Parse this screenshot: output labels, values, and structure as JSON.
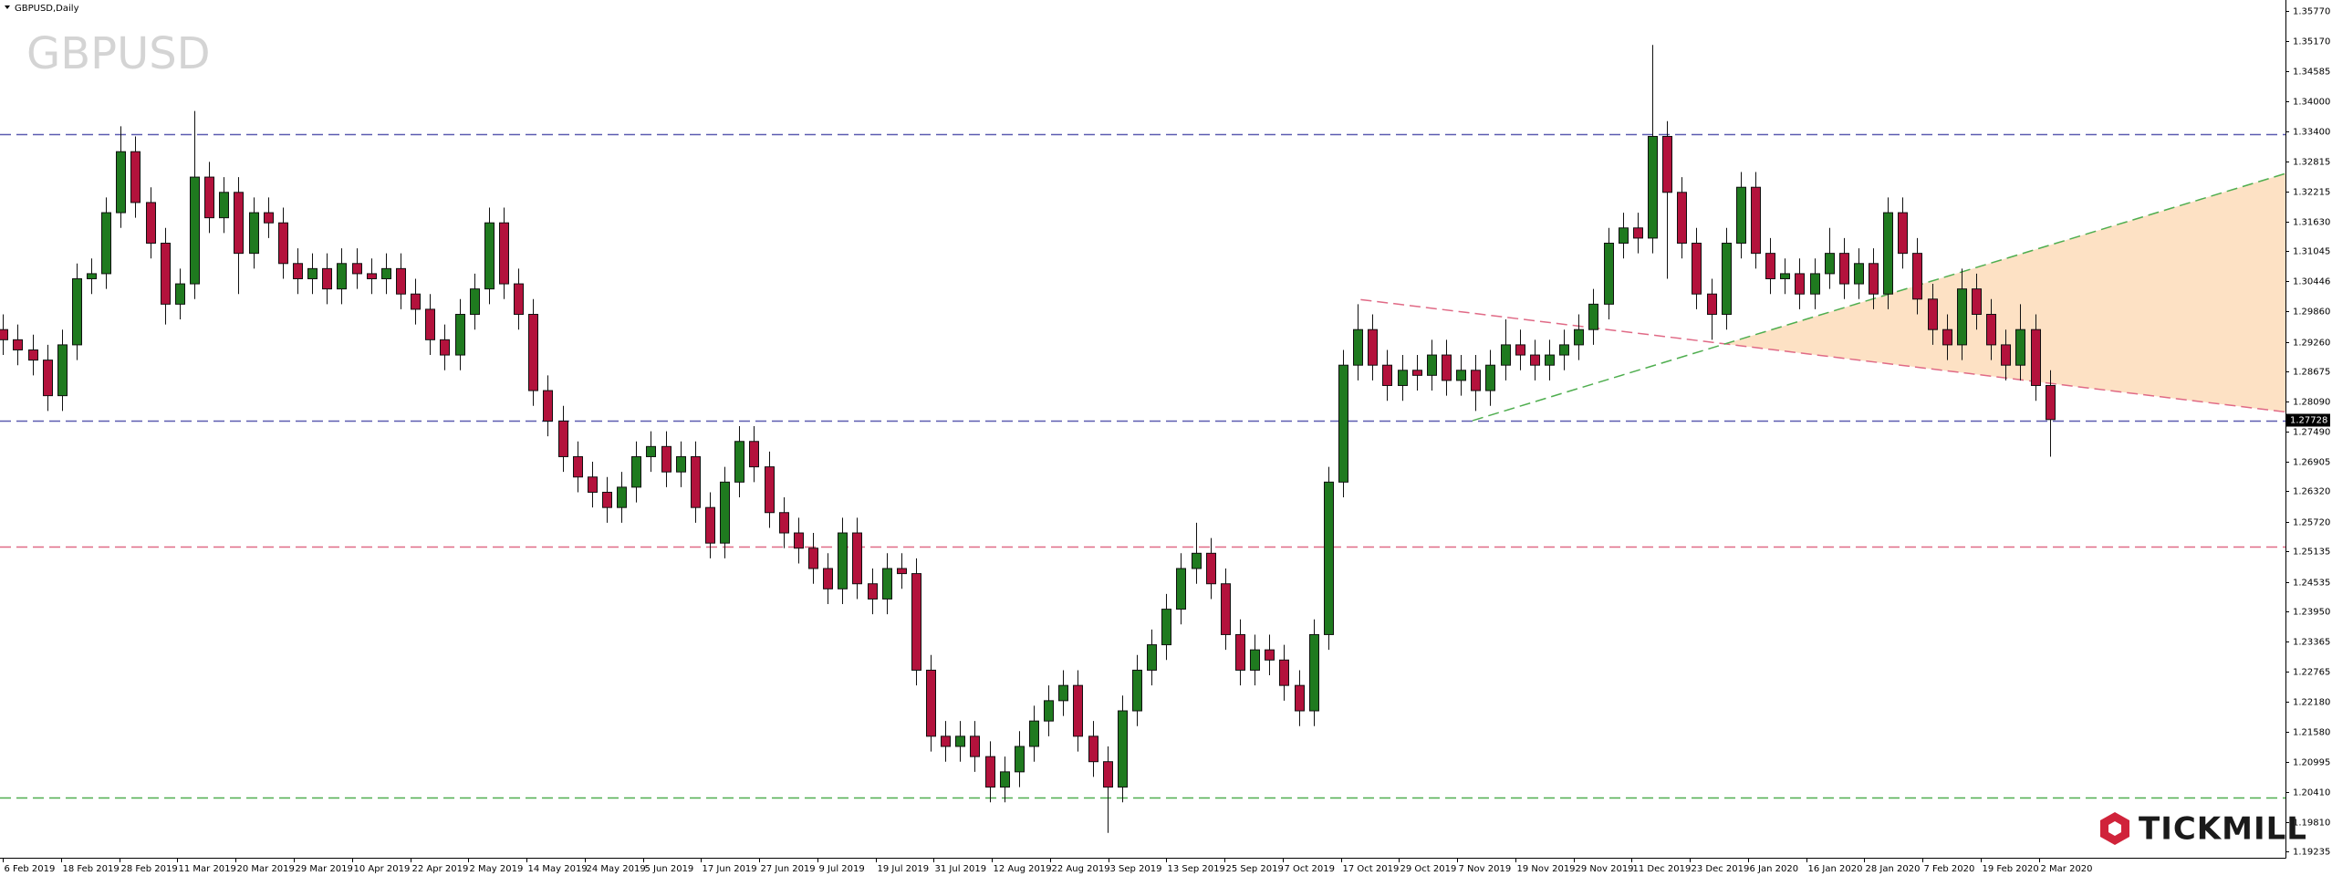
{
  "chart_data": {
    "type": "candlestick",
    "title": "GBPUSD,Daily",
    "watermark": "GBPUSD",
    "logo": "TICKMILL",
    "up_color": "#1f7a1f",
    "down_color": "#b3123c",
    "xlim": [
      -0.2,
      155
    ],
    "ylim": [
      1.1911,
      1.3593
    ],
    "xticks": [
      {
        "value": 0,
        "label": "6 Feb 2019"
      },
      {
        "value": 3.95,
        "label": "18 Feb 2019"
      },
      {
        "value": 7.9,
        "label": "28 Feb 2019"
      },
      {
        "value": 11.85,
        "label": "11 Mar 2019"
      },
      {
        "value": 15.8,
        "label": "20 Mar 2019"
      },
      {
        "value": 19.75,
        "label": "29 Mar 2019"
      },
      {
        "value": 23.7,
        "label": "10 Apr 2019"
      },
      {
        "value": 27.65,
        "label": "22 Apr 2019"
      },
      {
        "value": 31.6,
        "label": "2 May 2019"
      },
      {
        "value": 35.55,
        "label": "14 May 2019"
      },
      {
        "value": 39.5,
        "label": "24 May 2019"
      },
      {
        "value": 43.45,
        "label": "5 Jun 2019"
      },
      {
        "value": 47.4,
        "label": "17 Jun 2019"
      },
      {
        "value": 51.35,
        "label": "27 Jun 2019"
      },
      {
        "value": 55.3,
        "label": "9 Jul 2019"
      },
      {
        "value": 59.25,
        "label": "19 Jul 2019"
      },
      {
        "value": 63.2,
        "label": "31 Jul 2019"
      },
      {
        "value": 67.15,
        "label": "12 Aug 2019"
      },
      {
        "value": 71.1,
        "label": "22 Aug 2019"
      },
      {
        "value": 75.05,
        "label": "3 Sep 2019"
      },
      {
        "value": 79,
        "label": "13 Sep 2019"
      },
      {
        "value": 82.95,
        "label": "25 Sep 2019"
      },
      {
        "value": 86.9,
        "label": "7 Oct 2019"
      },
      {
        "value": 90.85,
        "label": "17 Oct 2019"
      },
      {
        "value": 94.8,
        "label": "29 Oct 2019"
      },
      {
        "value": 98.75,
        "label": "7 Nov 2019"
      },
      {
        "value": 102.7,
        "label": "19 Nov 2019"
      },
      {
        "value": 106.65,
        "label": "29 Nov 2019"
      },
      {
        "value": 110.6,
        "label": "11 Dec 2019"
      },
      {
        "value": 114.55,
        "label": "23 Dec 2019"
      },
      {
        "value": 118.5,
        "label": "6 Jan 2020"
      },
      {
        "value": 122.45,
        "label": "16 Jan 2020"
      },
      {
        "value": 126.4,
        "label": "28 Jan 2020"
      },
      {
        "value": 130.35,
        "label": "7 Feb 2020"
      },
      {
        "value": 134.3,
        "label": "19 Feb 2020"
      },
      {
        "value": 138.25,
        "label": "2 Mar 2020"
      }
    ],
    "yticks": [
      {
        "value": 1.3577,
        "label": "1.35770"
      },
      {
        "value": 1.3517,
        "label": "1.35170"
      },
      1.34585,
      {
        "value": 1.34,
        "label": "1.34000"
      },
      {
        "value": 1.334,
        "label": "1.33400"
      },
      1.32815,
      1.32215,
      {
        "value": 1.3163,
        "label": "1.31630"
      },
      1.31045,
      1.30446,
      {
        "value": 1.2986,
        "label": "1.29860"
      },
      {
        "value": 1.2926,
        "label": "1.29260"
      },
      1.28675,
      {
        "value": 1.2809,
        "label": "1.28090"
      },
      {
        "value": 1.2749,
        "label": "1.27490"
      },
      1.26905,
      {
        "value": 1.2632,
        "label": "1.26320"
      },
      {
        "value": 1.2572,
        "label": "1.25720"
      },
      1.25135,
      1.24535,
      {
        "value": 1.2395,
        "label": "1.23950"
      },
      1.23365,
      1.22765,
      {
        "value": 1.2218,
        "label": "1.22180"
      },
      {
        "value": 1.2158,
        "label": "1.21580"
      },
      1.20995,
      {
        "value": 1.2041,
        "label": "1.20410"
      },
      {
        "value": 1.1981,
        "label": "1.19810"
      },
      1.19235
    ],
    "last_price": {
      "value": 1.27728,
      "label": "1.27728"
    },
    "levels": [
      {
        "value": 1.3335,
        "color": "#5b5bb0"
      },
      {
        "value": 1.2771,
        "color": "#5b5bb0"
      },
      {
        "value": 1.2523,
        "color": "#e06a86"
      },
      {
        "value": 1.2029,
        "color": "#4fae4f"
      }
    ],
    "trendlines": [
      {
        "x": [
          92.2,
          155
        ],
        "y": [
          1.3009,
          1.2788
        ],
        "color": "#e06a86"
      },
      {
        "x": [
          99.8,
          155
        ],
        "y": [
          1.2771,
          1.3257
        ],
        "color": "#4fae4f"
      }
    ],
    "triangle_fill": "#fde1c4",
    "open": [
      1.295,
      1.293,
      1.291,
      1.289,
      1.282,
      1.292,
      1.305,
      1.306,
      1.318,
      1.33,
      1.32,
      1.312,
      1.3,
      1.304,
      1.325,
      1.317,
      1.322,
      1.31,
      1.318,
      1.316,
      1.308,
      1.305,
      1.307,
      1.303,
      1.308,
      1.306,
      1.305,
      1.307,
      1.302,
      1.299,
      1.293,
      1.29,
      1.298,
      1.303,
      1.316,
      1.304,
      1.298,
      1.283,
      1.277,
      1.27,
      1.266,
      1.263,
      1.26,
      1.264,
      1.27,
      1.272,
      1.267,
      1.27,
      1.26,
      1.253,
      1.265,
      1.273,
      1.268,
      1.259,
      1.255,
      1.252,
      1.248,
      1.244,
      1.255,
      1.245,
      1.242,
      1.248,
      1.247,
      1.228,
      1.215,
      1.213,
      1.215,
      1.211,
      1.205,
      1.208,
      1.213,
      1.218,
      1.222,
      1.225,
      1.215,
      1.21,
      1.205,
      1.22,
      1.228,
      1.233,
      1.24,
      1.248,
      1.251,
      1.245,
      1.235,
      1.228,
      1.232,
      1.23,
      1.225,
      1.22,
      1.235,
      1.265,
      1.288,
      1.295,
      1.288,
      1.284,
      1.287,
      1.286,
      1.29,
      1.285,
      1.287,
      1.283,
      1.288,
      1.292,
      1.29,
      1.288,
      1.29,
      1.292,
      1.295,
      1.3,
      1.312,
      1.315,
      1.313,
      1.333,
      1.322,
      1.312,
      1.302,
      1.298,
      1.312,
      1.323,
      1.31,
      1.305,
      1.306,
      1.302,
      1.306,
      1.31,
      1.304,
      1.308,
      1.302,
      1.318,
      1.31,
      1.301,
      1.295,
      1.292,
      1.303,
      1.298,
      1.292,
      1.288,
      1.295,
      1.284
    ],
    "high": [
      1.298,
      1.296,
      1.294,
      1.292,
      1.295,
      1.308,
      1.309,
      1.321,
      1.335,
      1.333,
      1.323,
      1.315,
      1.307,
      1.338,
      1.328,
      1.325,
      1.325,
      1.321,
      1.321,
      1.319,
      1.311,
      1.31,
      1.31,
      1.311,
      1.311,
      1.309,
      1.31,
      1.31,
      1.305,
      1.302,
      1.296,
      1.301,
      1.306,
      1.319,
      1.319,
      1.307,
      1.301,
      1.286,
      1.28,
      1.273,
      1.269,
      1.266,
      1.267,
      1.273,
      1.275,
      1.275,
      1.273,
      1.273,
      1.263,
      1.268,
      1.276,
      1.276,
      1.271,
      1.262,
      1.258,
      1.255,
      1.251,
      1.258,
      1.258,
      1.248,
      1.251,
      1.251,
      1.25,
      1.231,
      1.218,
      1.218,
      1.218,
      1.214,
      1.211,
      1.216,
      1.221,
      1.225,
      1.228,
      1.228,
      1.218,
      1.213,
      1.223,
      1.231,
      1.236,
      1.243,
      1.251,
      1.257,
      1.254,
      1.248,
      1.238,
      1.235,
      1.235,
      1.233,
      1.228,
      1.238,
      1.268,
      1.291,
      1.3,
      1.298,
      1.291,
      1.29,
      1.29,
      1.293,
      1.293,
      1.29,
      1.29,
      1.291,
      1.297,
      1.295,
      1.293,
      1.293,
      1.295,
      1.298,
      1.303,
      1.315,
      1.318,
      1.318,
      1.351,
      1.336,
      1.325,
      1.315,
      1.305,
      1.315,
      1.326,
      1.326,
      1.313,
      1.309,
      1.309,
      1.309,
      1.315,
      1.313,
      1.311,
      1.311,
      1.321,
      1.321,
      1.313,
      1.304,
      1.298,
      1.307,
      1.306,
      1.301,
      1.295,
      1.3,
      1.298,
      1.287
    ],
    "low": [
      1.29,
      1.288,
      1.286,
      1.279,
      1.279,
      1.289,
      1.302,
      1.303,
      1.315,
      1.317,
      1.309,
      1.296,
      1.297,
      1.301,
      1.314,
      1.314,
      1.302,
      1.307,
      1.313,
      1.305,
      1.302,
      1.302,
      1.3,
      1.3,
      1.303,
      1.302,
      1.302,
      1.299,
      1.296,
      1.29,
      1.287,
      1.287,
      1.295,
      1.3,
      1.301,
      1.295,
      1.28,
      1.274,
      1.267,
      1.263,
      1.26,
      1.257,
      1.257,
      1.261,
      1.267,
      1.264,
      1.264,
      1.257,
      1.25,
      1.25,
      1.262,
      1.265,
      1.256,
      1.252,
      1.249,
      1.245,
      1.241,
      1.241,
      1.242,
      1.239,
      1.239,
      1.244,
      1.225,
      1.212,
      1.21,
      1.21,
      1.208,
      1.202,
      1.202,
      1.205,
      1.21,
      1.215,
      1.219,
      1.212,
      1.207,
      1.196,
      1.202,
      1.217,
      1.225,
      1.23,
      1.237,
      1.245,
      1.242,
      1.232,
      1.225,
      1.225,
      1.227,
      1.222,
      1.217,
      1.217,
      1.232,
      1.262,
      1.285,
      1.285,
      1.281,
      1.281,
      1.283,
      1.283,
      1.282,
      1.282,
      1.279,
      1.28,
      1.285,
      1.287,
      1.285,
      1.285,
      1.287,
      1.289,
      1.292,
      1.297,
      1.309,
      1.31,
      1.31,
      1.305,
      1.309,
      1.299,
      1.293,
      1.295,
      1.309,
      1.307,
      1.302,
      1.302,
      1.299,
      1.299,
      1.303,
      1.301,
      1.301,
      1.299,
      1.299,
      1.307,
      1.298,
      1.292,
      1.289,
      1.289,
      1.295,
      1.289,
      1.285,
      1.285,
      1.281,
      1.27
    ],
    "close": [
      1.293,
      1.291,
      1.289,
      1.282,
      1.292,
      1.305,
      1.306,
      1.318,
      1.33,
      1.32,
      1.312,
      1.3,
      1.304,
      1.325,
      1.317,
      1.322,
      1.31,
      1.318,
      1.316,
      1.308,
      1.305,
      1.307,
      1.303,
      1.308,
      1.306,
      1.305,
      1.307,
      1.302,
      1.299,
      1.293,
      1.29,
      1.298,
      1.303,
      1.316,
      1.304,
      1.298,
      1.283,
      1.277,
      1.27,
      1.266,
      1.263,
      1.26,
      1.264,
      1.27,
      1.272,
      1.267,
      1.27,
      1.26,
      1.253,
      1.265,
      1.273,
      1.268,
      1.259,
      1.255,
      1.252,
      1.248,
      1.244,
      1.255,
      1.245,
      1.242,
      1.248,
      1.247,
      1.228,
      1.215,
      1.213,
      1.215,
      1.211,
      1.205,
      1.208,
      1.213,
      1.218,
      1.222,
      1.225,
      1.215,
      1.21,
      1.205,
      1.22,
      1.228,
      1.233,
      1.24,
      1.248,
      1.251,
      1.245,
      1.235,
      1.228,
      1.232,
      1.23,
      1.225,
      1.22,
      1.235,
      1.265,
      1.288,
      1.295,
      1.288,
      1.284,
      1.287,
      1.286,
      1.29,
      1.285,
      1.287,
      1.283,
      1.288,
      1.292,
      1.29,
      1.288,
      1.29,
      1.292,
      1.295,
      1.3,
      1.312,
      1.315,
      1.313,
      1.333,
      1.322,
      1.312,
      1.302,
      1.298,
      1.312,
      1.323,
      1.31,
      1.305,
      1.306,
      1.302,
      1.306,
      1.31,
      1.304,
      1.308,
      1.302,
      1.318,
      1.31,
      1.301,
      1.295,
      1.292,
      1.303,
      1.298,
      1.292,
      1.288,
      1.295,
      1.284,
      1.2773
    ]
  }
}
